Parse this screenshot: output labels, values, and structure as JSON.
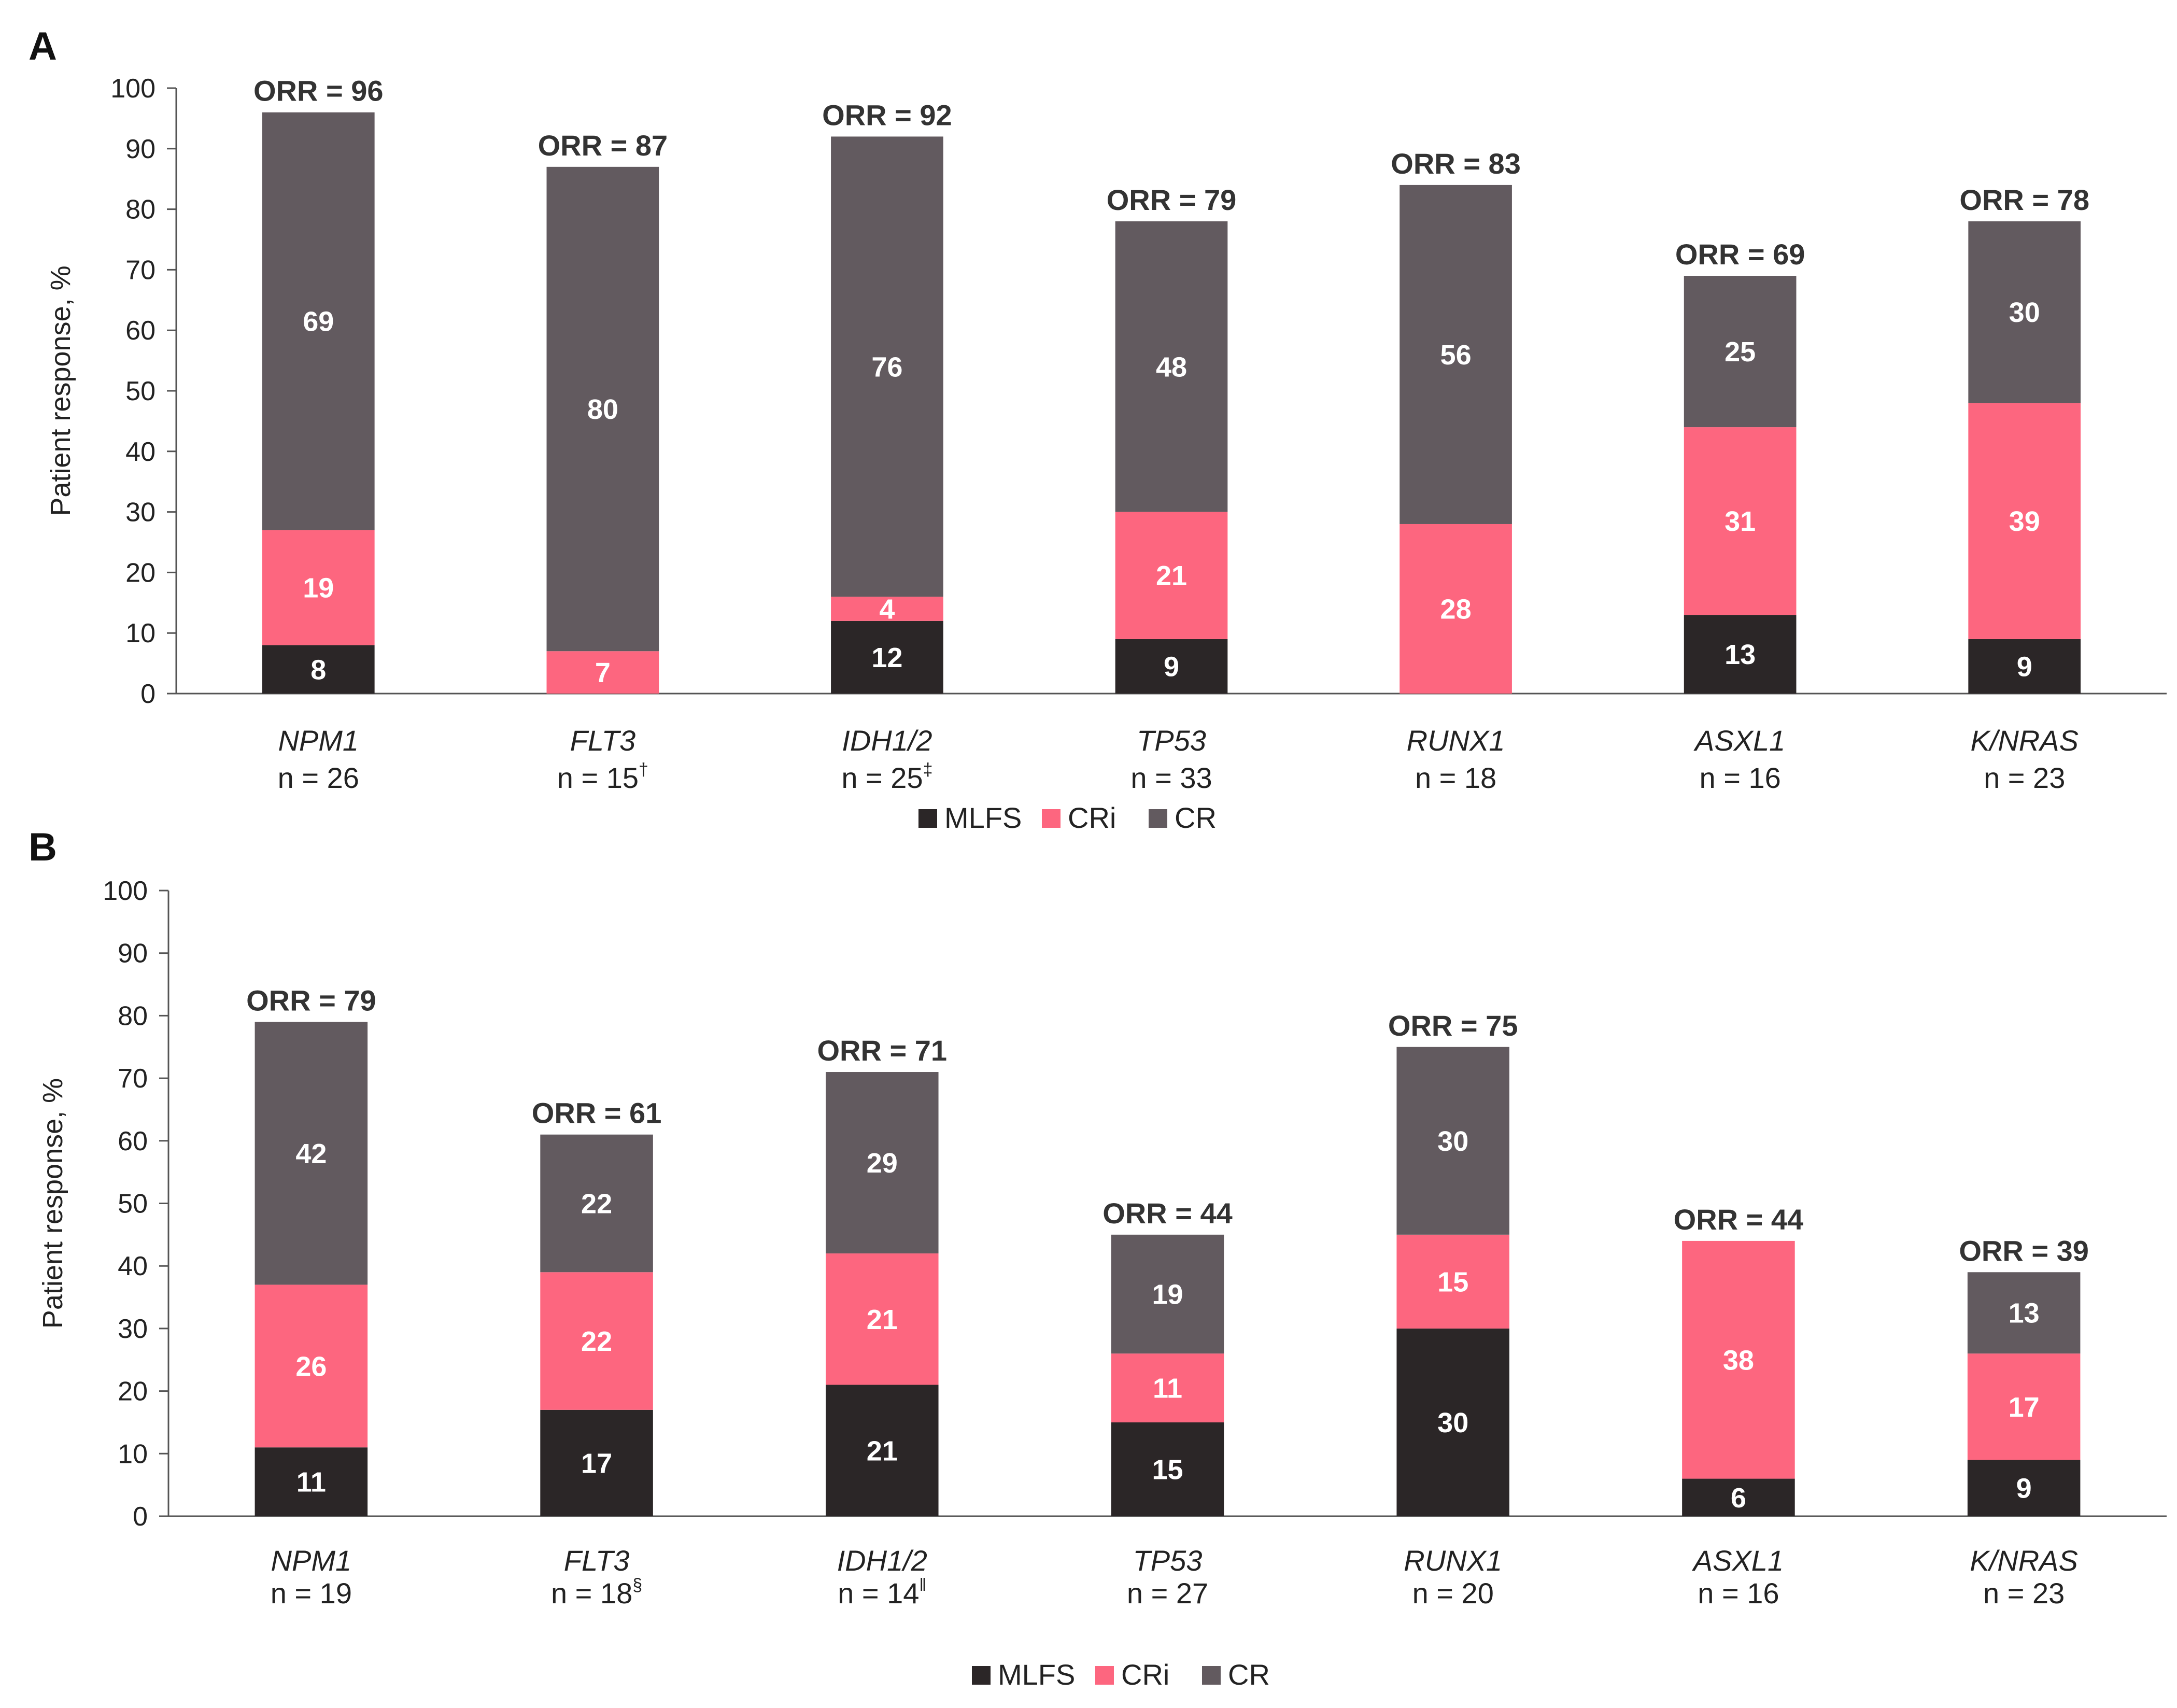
{
  "colors": {
    "MLFS": "#2b2627",
    "CRi": "#fd667f",
    "CR": "#625a5f"
  },
  "chart_data": [
    {
      "panel": "A",
      "type": "bar",
      "stacked": true,
      "ylabel": "Patient response, %",
      "ylim": [
        0,
        100
      ],
      "yticks": [
        0,
        10,
        20,
        30,
        40,
        50,
        60,
        70,
        80,
        90,
        100
      ],
      "categories": [
        "NPM1",
        "FLT3",
        "IDH1/2",
        "TP53",
        "RUNX1",
        "ASXL1",
        "K/NRAS"
      ],
      "n_labels": [
        "n = 26",
        "n = 15",
        "n = 25",
        "n = 33",
        "n = 18",
        "n = 16",
        "n = 23"
      ],
      "n_sup": [
        "",
        "†",
        "‡",
        "",
        "",
        "",
        ""
      ],
      "orr_labels": [
        "ORR = 96",
        "ORR = 87",
        "ORR = 92",
        "ORR = 79",
        "ORR = 83",
        "ORR = 69",
        "ORR = 78"
      ],
      "series": [
        {
          "name": "MLFS",
          "values": [
            8,
            0,
            12,
            9,
            0,
            13,
            9
          ]
        },
        {
          "name": "CRi",
          "values": [
            19,
            7,
            4,
            21,
            28,
            31,
            39
          ]
        },
        {
          "name": "CR",
          "values": [
            69,
            80,
            76,
            48,
            56,
            25,
            30
          ]
        }
      ],
      "legend": [
        "MLFS",
        "CRi",
        "CR"
      ]
    },
    {
      "panel": "B",
      "type": "bar",
      "stacked": true,
      "ylabel": "Patient response, %",
      "ylim": [
        0,
        100
      ],
      "yticks": [
        0,
        10,
        20,
        30,
        40,
        50,
        60,
        70,
        80,
        90,
        100
      ],
      "categories": [
        "NPM1",
        "FLT3",
        "IDH1/2",
        "TP53",
        "RUNX1",
        "ASXL1",
        "K/NRAS"
      ],
      "n_labels": [
        "n = 19",
        "n = 18",
        "n = 14",
        "n = 27",
        "n = 20",
        "n = 16",
        "n = 23"
      ],
      "n_sup": [
        "",
        "§",
        "‖",
        "",
        "",
        "",
        ""
      ],
      "orr_labels": [
        "ORR = 79",
        "ORR = 61",
        "ORR = 71",
        "ORR = 44",
        "ORR = 75",
        "ORR = 44",
        "ORR = 39"
      ],
      "series": [
        {
          "name": "MLFS",
          "values": [
            11,
            17,
            21,
            15,
            30,
            6,
            9
          ]
        },
        {
          "name": "CRi",
          "values": [
            26,
            22,
            21,
            11,
            15,
            38,
            17
          ]
        },
        {
          "name": "CR",
          "values": [
            42,
            22,
            29,
            19,
            30,
            0,
            13
          ]
        }
      ],
      "legend": [
        "MLFS",
        "CRi",
        "CR"
      ]
    }
  ]
}
